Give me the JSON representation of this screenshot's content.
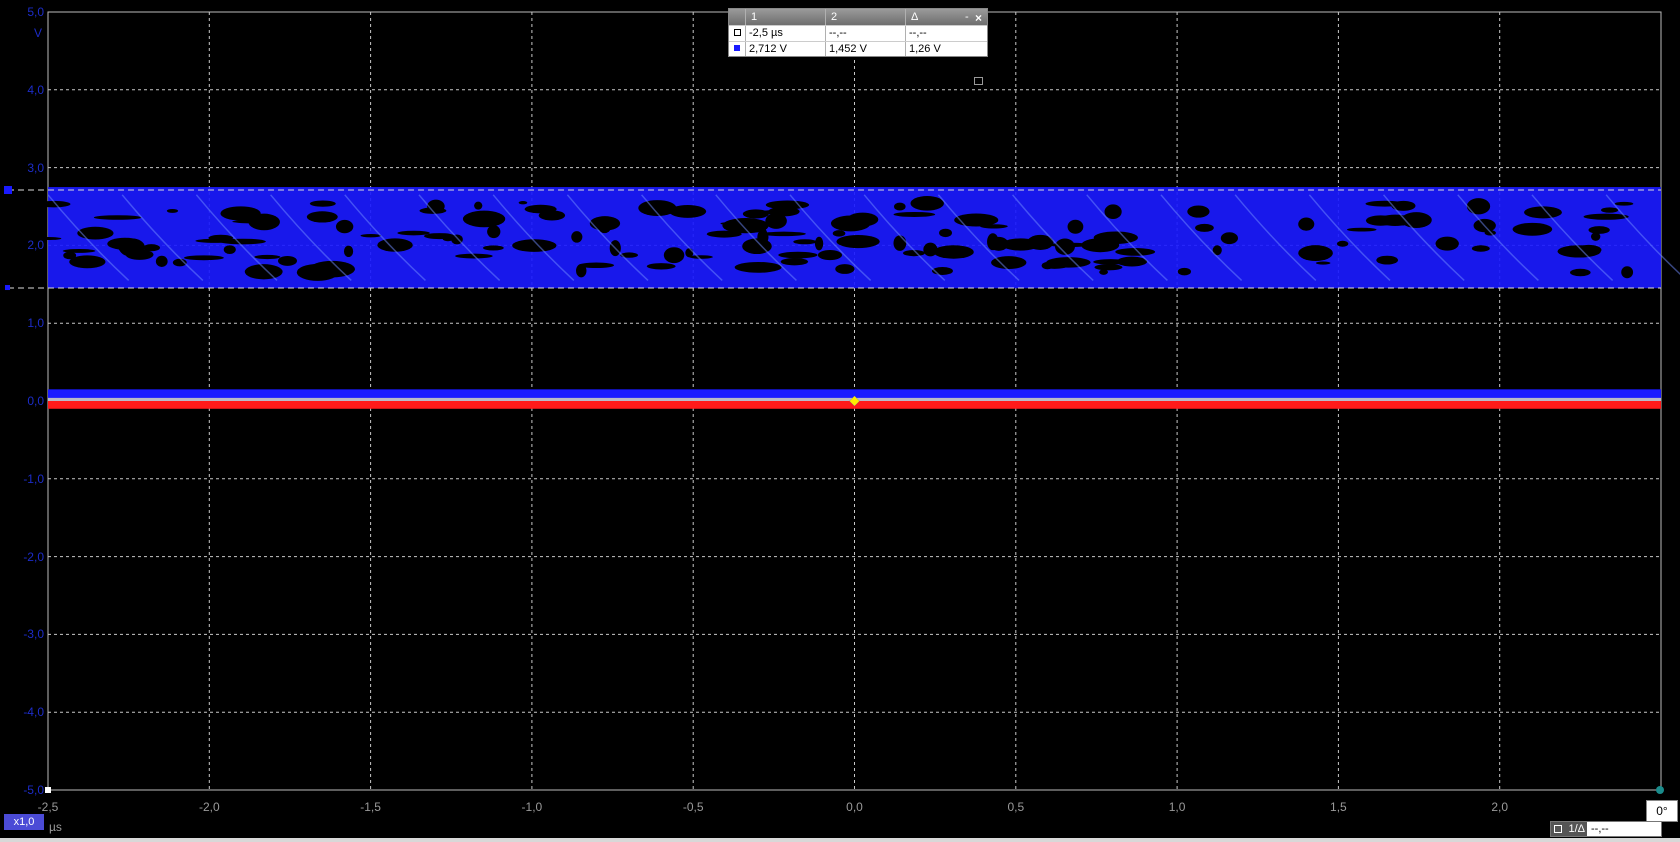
{
  "plot": {
    "y_ticks": [
      "5,0",
      "4,0",
      "3,0",
      "2,0",
      "1,0",
      "0,0",
      "-1,0",
      "-2,0",
      "-3,0",
      "-4,0",
      "-5,0"
    ],
    "y_unit": "V",
    "x_ticks": [
      "-2,5",
      "-2,0",
      "-1,5",
      "-1,0",
      "-0,5",
      "0,0",
      "0,5",
      "1,0",
      "1,5",
      "2,0"
    ],
    "x_unit": "µs",
    "zoom_label": "x1,0",
    "trace_color": "#1a1aff",
    "baseline_color": "#ff1a1a",
    "trigger_color": "#ffee00",
    "cursor_1_level_v": 2.712,
    "cursor_2_level_v": 1.452,
    "eye_band_v": [
      1.45,
      2.75
    ],
    "baseline_band_v": [
      -0.1,
      0.15
    ]
  },
  "cursor_panel": {
    "headers": [
      "1",
      "2",
      "Δ"
    ],
    "minimize": "-",
    "close": "×",
    "rows": [
      {
        "marker": "white-square",
        "c1": "-2,5 µs",
        "c2": "--,--",
        "delta": "--,--"
      },
      {
        "marker": "blue-square",
        "c1": "2,712 V",
        "c2": "1,452 V",
        "delta": "1,26 V"
      }
    ]
  },
  "controls": {
    "phase": "0°",
    "measure_label": "1/Δ",
    "measure_value": "--,--"
  }
}
